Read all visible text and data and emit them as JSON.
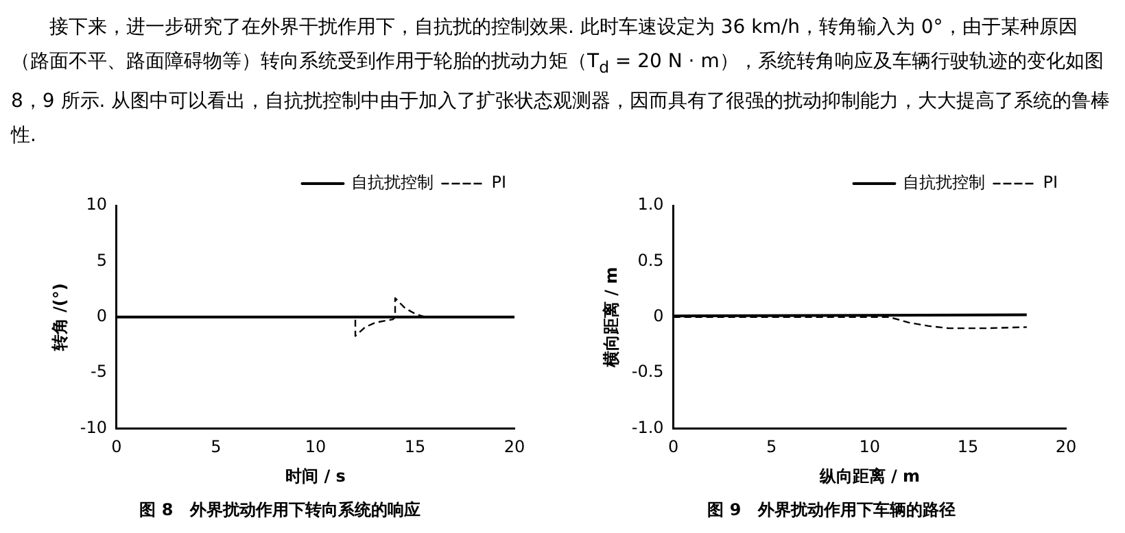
{
  "chart_data": [
    {
      "type": "line",
      "title": "图 8　外界扰动作用下转向系统的响应",
      "xlabel": "时间 / s",
      "ylabel": "转角 /(°)",
      "annotations": [
        "接下来，进一步研究了在外界干扰作用下，自抗扰的控制效果. 此时车速设定为 36 km/h，转角输入为 0°，由于某种原因（路面不平、路面障碍物等）转向系统受到作用于轮胎的扰动力矩（T$_{d}$ = 20 N · m），系统转角响应及车辆行驶轨迹的变化如图 8，9 所示. 从图中可以看出，自抗扰控制中由于加入了扩张状态观测器，因而具有了很强的扰动抑制能力，大大提高了系统的鲁棒性."
      ],
      "series": [
        {
          "name": "自抗扰控制",
          "color": "#000000",
          "x": [
            0,
            20
          ],
          "values": [
            0,
            0
          ]
        },
        {
          "name": "PI",
          "color": "#000000",
          "line_style": "dashed",
          "x": [
            0,
            12,
            12,
            12.5,
            13,
            13.9,
            14,
            14,
            14.5,
            15,
            15.5,
            20
          ],
          "values": [
            0,
            0,
            -1.7,
            -0.9,
            -0.5,
            -0.2,
            0,
            1.7,
            0.8,
            0.3,
            0,
            0
          ]
        }
      ],
      "xlim": [
        0,
        20
      ],
      "xticks": [
        0,
        5,
        10,
        15,
        20
      ],
      "ylim": [
        -10,
        10
      ],
      "yticks": [
        -10,
        -5,
        0,
        5,
        10
      ],
      "legend": "top right",
      "grid": false
    },
    {
      "type": "line",
      "title": "图 9　外界扰动作用下车辆的路径",
      "xlabel": "纵向距离 / m",
      "ylabel": "横向距离 / m",
      "series": [
        {
          "name": "自抗扰控制",
          "color": "#000000",
          "x": [
            0,
            18
          ],
          "values": [
            0.01,
            0.02
          ]
        },
        {
          "name": "PI",
          "color": "#000000",
          "line_style": "dashed",
          "x": [
            0,
            11,
            12,
            13,
            14,
            15,
            16,
            18
          ],
          "values": [
            0,
            0,
            -0.05,
            -0.08,
            -0.1,
            -0.1,
            -0.1,
            -0.09
          ]
        }
      ],
      "xlim": [
        0,
        20
      ],
      "xticks": [
        0,
        5,
        10,
        15,
        20
      ],
      "ylim": [
        -1,
        1
      ],
      "yticks": [
        {
          "value": -1,
          "label": "-1.0"
        },
        -0.5,
        0,
        0.5,
        {
          "value": 1,
          "label": "1.0"
        }
      ],
      "legend": "top right",
      "grid": false
    }
  ]
}
